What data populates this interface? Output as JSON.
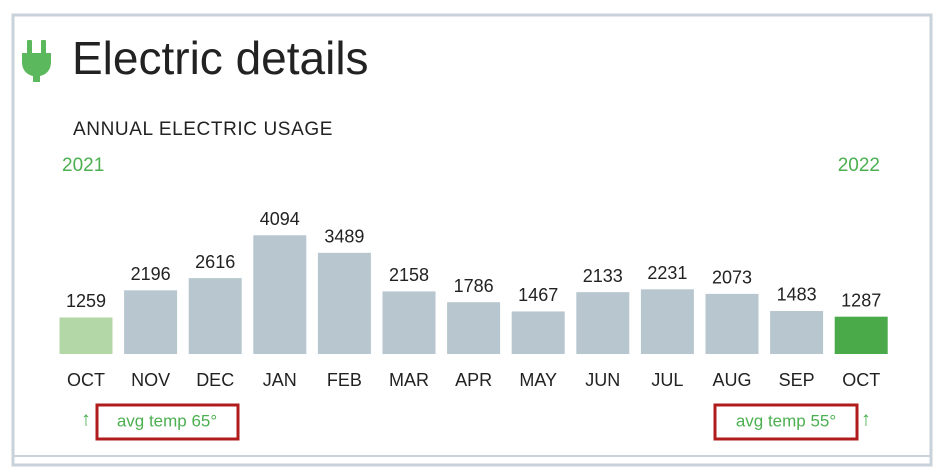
{
  "chart_data": {
    "type": "bar",
    "title": "Electric details",
    "subtitle": "ANNUAL ELECTRIC USAGE",
    "start_year": "2021",
    "end_year": "2022",
    "categories": [
      "OCT",
      "NOV",
      "DEC",
      "JAN",
      "FEB",
      "MAR",
      "APR",
      "MAY",
      "JUN",
      "JUL",
      "AUG",
      "SEP",
      "OCT"
    ],
    "values": [
      1259,
      2196,
      2616,
      4094,
      3489,
      2158,
      1786,
      1467,
      2133,
      2231,
      2073,
      1483,
      1287
    ],
    "colors": [
      "#b3d7a6",
      "#b7c6cf",
      "#b7c6cf",
      "#b7c6cf",
      "#b7c6cf",
      "#b7c6cf",
      "#b7c6cf",
      "#b7c6cf",
      "#b7c6cf",
      "#b7c6cf",
      "#b7c6cf",
      "#b7c6cf",
      "#4aaa4a"
    ],
    "annotations": [
      "avg temp 65°",
      "avg temp 55°"
    ]
  }
}
